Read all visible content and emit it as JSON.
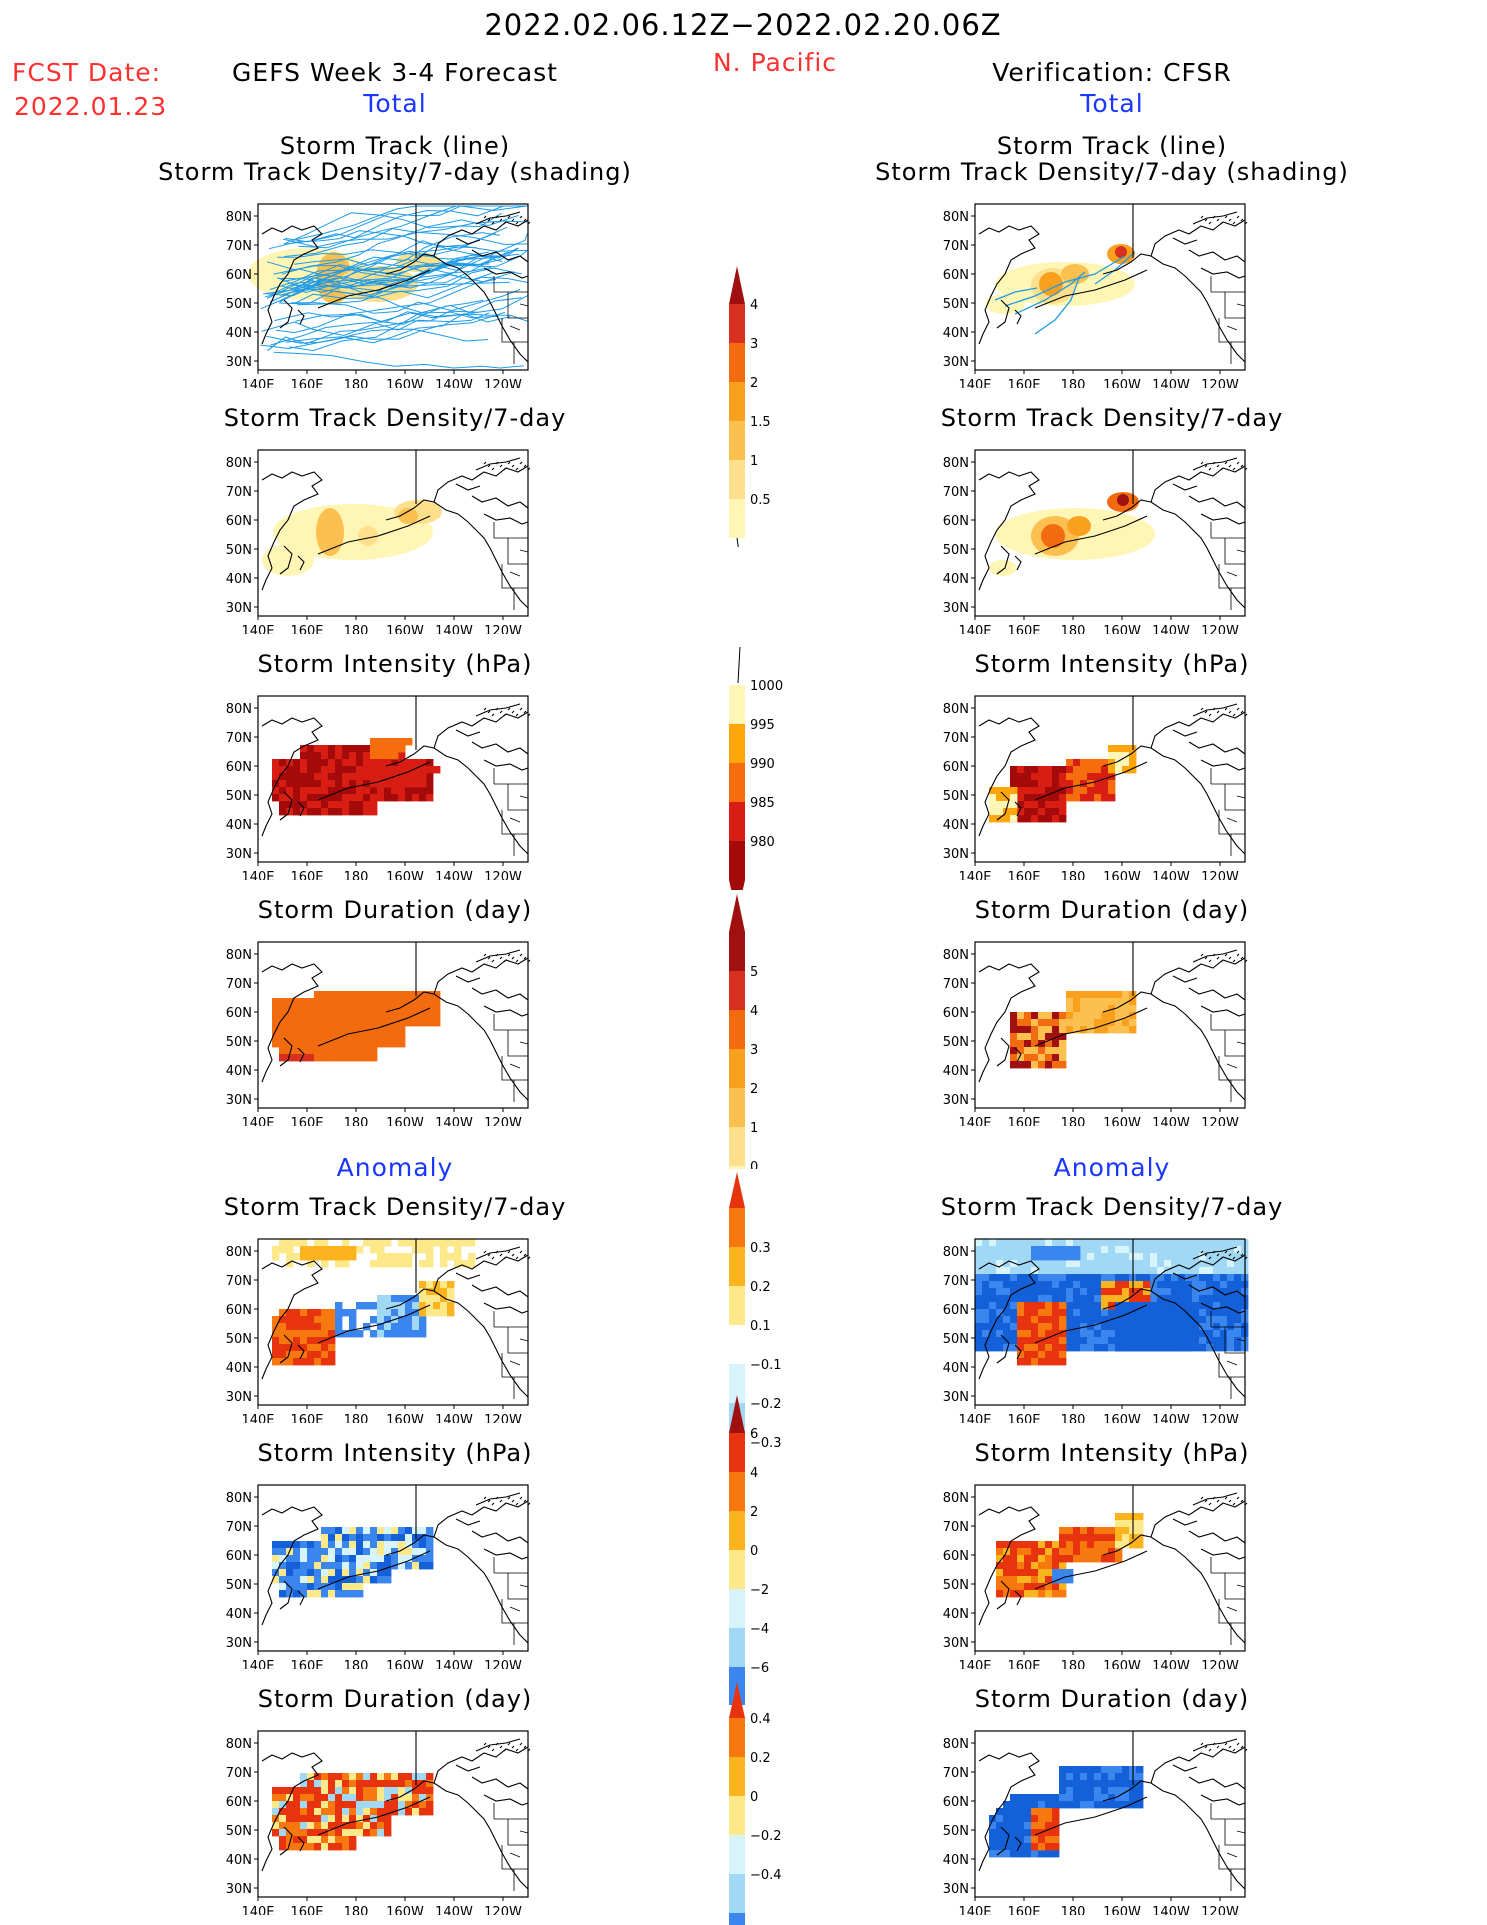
{
  "header": {
    "date_range": "2022.02.06.12Z−2022.02.20.06Z",
    "region": "N. Pacific",
    "fcst_label": "FCST Date:",
    "fcst_date": "2022.01.23",
    "left_title": "GEFS Week 3-4 Forecast",
    "right_title": "Verification: CFSR",
    "total_label": "Total",
    "anomaly_label": "Anomaly"
  },
  "panel_titles": {
    "track_line": "Storm Track (line)",
    "track_shading": "Storm Track Density/7-day (shading)",
    "density": "Storm Track Density/7-day",
    "intensity": "Storm Intensity (hPa)",
    "duration": "Storm Duration (day)"
  },
  "map_axes": {
    "lat_labels": [
      "80N",
      "70N",
      "60N",
      "50N",
      "40N",
      "30N"
    ],
    "lon_labels": [
      "140E",
      "160E",
      "180",
      "160W",
      "140W",
      "120W"
    ]
  },
  "colorbars": {
    "density_total": [
      "0.5",
      "1",
      "1.5",
      "2",
      "3",
      "4"
    ],
    "intensity_total": [
      "1000",
      "995",
      "990",
      "985",
      "980"
    ],
    "duration_total": [
      "0",
      "1",
      "2",
      "3",
      "4",
      "5"
    ],
    "density_anom": [
      "0.3",
      "0.2",
      "0.1",
      "−0.1",
      "−0.2",
      "−0.3"
    ],
    "intensity_anom": [
      "6",
      "4",
      "2",
      "0",
      "−2",
      "−4",
      "−6"
    ],
    "duration_anom": [
      "0.4",
      "0.2",
      "0",
      "−0.2",
      "−0.4"
    ]
  },
  "colors": {
    "title_red": "#ff3030",
    "label_blue": "#1a36ff",
    "track_line": "#1e9be8",
    "density_scale": [
      "#fff5b4",
      "#fee08c",
      "#fcc050",
      "#f9a01e",
      "#f26b0f",
      "#d7301f",
      "#a11010"
    ],
    "intensity_scale": [
      "#fff6b8",
      "#fea60a",
      "#f56d0c",
      "#d81e12",
      "#a50a0a"
    ],
    "anomaly_scale": [
      "#1460d8",
      "#3a86ee",
      "#a0d8f6",
      "#d8f4fb",
      "#ffffff",
      "#fde88a",
      "#fbb41e",
      "#f87810",
      "#e8340e"
    ]
  }
}
